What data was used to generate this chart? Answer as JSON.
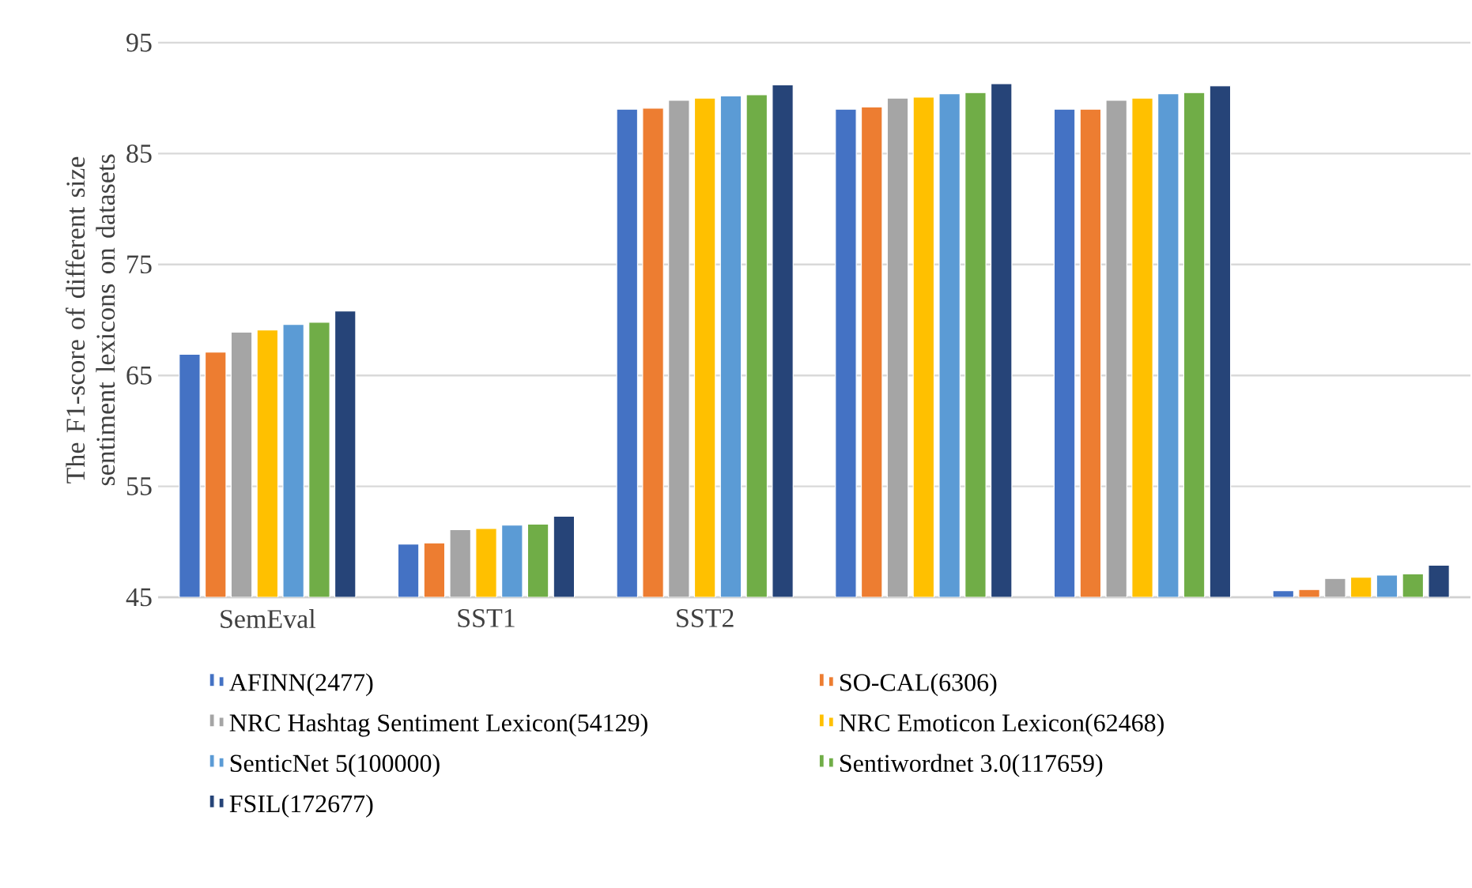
{
  "chart_data": {
    "type": "bar",
    "ylabel": "The F1-score of different size sentiment lexicons on datasets",
    "categories": [
      "SemEval",
      "SST1",
      "SST2",
      null,
      null,
      null
    ],
    "ylim": [
      45,
      95
    ],
    "yticks": [
      45,
      55,
      65,
      75,
      85,
      95
    ],
    "grid": "y",
    "legend": "bottom",
    "series": [
      {
        "name": "AFINN(2477)",
        "color": "#4472c4",
        "values": [
          66.9,
          49.8,
          89.0,
          89.0,
          89.0,
          45.6
        ]
      },
      {
        "name": "SO-CAL(6306)",
        "color": "#ed7d31",
        "values": [
          67.1,
          49.9,
          89.1,
          89.2,
          89.0,
          45.7
        ]
      },
      {
        "name": "NRC Hashtag Sentiment Lexicon(54129)",
        "color": "#a5a5a5",
        "values": [
          68.9,
          51.1,
          89.8,
          90.0,
          89.8,
          46.7
        ]
      },
      {
        "name": "NRC Emoticon Lexicon(62468)",
        "color": "#ffc000",
        "values": [
          69.1,
          51.2,
          90.0,
          90.1,
          90.0,
          46.8
        ]
      },
      {
        "name": "SenticNet 5(100000)",
        "color": "#5b9bd5",
        "values": [
          69.6,
          51.5,
          90.2,
          90.4,
          90.4,
          47.0
        ]
      },
      {
        "name": "Sentiwordnet 3.0(117659)",
        "color": "#70ad47",
        "values": [
          69.8,
          51.6,
          90.3,
          90.5,
          90.5,
          47.1
        ]
      },
      {
        "name": "FSIL(172677)",
        "color": "#264478",
        "values": [
          70.8,
          52.3,
          91.2,
          91.3,
          91.1,
          47.9
        ]
      }
    ]
  }
}
